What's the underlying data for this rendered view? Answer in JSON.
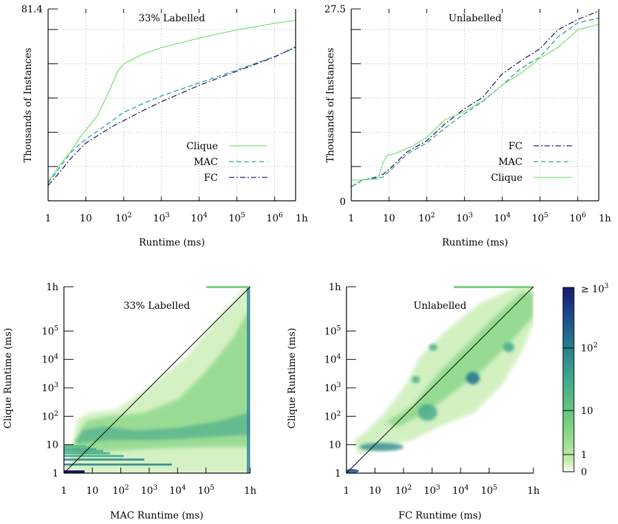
{
  "chart_data": [
    {
      "type": "line",
      "title": "33% Labelled",
      "xlabel": "Runtime (ms)",
      "ylabel": "Thousands of Instances",
      "x_scale": "log",
      "xlim": [
        1,
        3600000
      ],
      "ylim": [
        0,
        81.4
      ],
      "x_tick_labels": [
        "1",
        "10",
        "10^2",
        "10^3",
        "10^4",
        "10^5",
        "10^6",
        "1h"
      ],
      "y_tick_labels": [
        "81.4"
      ],
      "grid": true,
      "legend": "bottom-right",
      "series": [
        {
          "name": "Clique",
          "color": "#7ee07a",
          "dash": "solid",
          "x": [
            1,
            2,
            4,
            7,
            10,
            20,
            40,
            70,
            100,
            300,
            1000,
            10000,
            100000,
            1000000,
            3600000
          ],
          "y": [
            8,
            15,
            21,
            27,
            30,
            36,
            46,
            55,
            58,
            62,
            65,
            69,
            72.5,
            75.3,
            76.5
          ]
        },
        {
          "name": "MAC",
          "color": "#2a9d8f",
          "dash": "dashed",
          "x": [
            1,
            2,
            4,
            7,
            10,
            20,
            50,
            100,
            300,
            1000,
            10000,
            100000,
            1000000,
            3600000
          ],
          "y": [
            7.5,
            14,
            20.5,
            24,
            26.2,
            29.5,
            34,
            37.5,
            41,
            44.5,
            50,
            55.5,
            61.2,
            65
          ]
        },
        {
          "name": "FC",
          "color": "#1c1c6e",
          "dash": "dashdot",
          "x": [
            1,
            2,
            4,
            7,
            10,
            20,
            50,
            100,
            300,
            1000,
            10000,
            100000,
            1000000,
            3600000
          ],
          "y": [
            6.5,
            12,
            18,
            22,
            24.5,
            27.5,
            31.5,
            34,
            38,
            42,
            49,
            55,
            61,
            65.3
          ]
        }
      ]
    },
    {
      "type": "line",
      "title": "Unlabelled",
      "xlabel": "Runtime (ms)",
      "ylabel": "Thousands of Instances",
      "x_scale": "log",
      "xlim": [
        1,
        3600000
      ],
      "ylim": [
        0,
        27.5
      ],
      "x_tick_labels": [
        "1",
        "10",
        "10^2",
        "10^3",
        "10^4",
        "10^5",
        "10^6",
        "1h"
      ],
      "y_tick_labels": [
        "0",
        "27.5"
      ],
      "grid": true,
      "legend": "bottom-right",
      "series": [
        {
          "name": "FC",
          "color": "#1c1c6e",
          "dash": "dashdot",
          "x": [
            1,
            2,
            4,
            7,
            10,
            30,
            100,
            300,
            1000,
            3000,
            10000,
            30000,
            100000,
            300000,
            1000000,
            3600000
          ],
          "y": [
            2,
            3,
            3.3,
            3.8,
            4.5,
            7,
            8.6,
            11,
            13.2,
            14.8,
            18.2,
            20,
            21.8,
            24.5,
            26,
            27.2
          ]
        },
        {
          "name": "MAC",
          "color": "#2a9d8f",
          "dash": "dashed",
          "x": [
            1,
            2,
            4,
            7,
            10,
            30,
            100,
            300,
            1000,
            3000,
            10000,
            30000,
            100000,
            300000,
            1000000,
            3600000
          ],
          "y": [
            2,
            3,
            3.2,
            3.4,
            4.2,
            6.7,
            8.3,
            10.4,
            12.5,
            14.2,
            16.6,
            18.9,
            20.6,
            23.5,
            25.5,
            26.2
          ]
        },
        {
          "name": "Clique",
          "color": "#7ee07a",
          "dash": "solid",
          "x": [
            1,
            2,
            5,
            7,
            9,
            15,
            40,
            100,
            300,
            1000,
            3000,
            10000,
            30000,
            100000,
            300000,
            1000000,
            3600000
          ],
          "y": [
            3,
            3,
            3.1,
            5.5,
            6.5,
            6.8,
            7.8,
            9.1,
            11.6,
            12.8,
            14.3,
            16.6,
            18.2,
            20.4,
            22,
            24.5,
            25.3
          ]
        }
      ]
    },
    {
      "type": "heatmap",
      "title": "33% Labelled",
      "xlabel": "MAC Runtime (ms)",
      "ylabel": "Clique Runtime (ms)",
      "x_scale": "log",
      "y_scale": "log",
      "xlim": [
        1,
        3600000
      ],
      "ylim": [
        1,
        3600000
      ],
      "x_tick_labels": [
        "1",
        "10",
        "10^2",
        "10^3",
        "10^4",
        "10^5",
        "1h"
      ],
      "y_tick_labels": [
        "1",
        "10",
        "10^2",
        "10^3",
        "10^4",
        "10^5",
        "1h"
      ],
      "diagonal": "y = x",
      "colorbar": {
        "label_levels": [
          "0",
          "1",
          "10",
          "10^2",
          "≥ 10^3"
        ]
      }
    },
    {
      "type": "heatmap",
      "title": "Unlabelled",
      "xlabel": "FC Runtime (ms)",
      "ylabel": "Clique Runtime (ms)",
      "x_scale": "log",
      "y_scale": "log",
      "xlim": [
        1,
        3600000
      ],
      "ylim": [
        1,
        3600000
      ],
      "x_tick_labels": [
        "1",
        "10",
        "10^2",
        "10^3",
        "10^4",
        "10^5",
        "1h"
      ],
      "y_tick_labels": [
        "1",
        "10",
        "10^2",
        "10^3",
        "10^4",
        "10^5",
        "1h"
      ],
      "diagonal": "y = x",
      "colorbar": {
        "label_levels": [
          "0",
          "1",
          "10",
          "10^2",
          "≥ 10^3"
        ]
      }
    }
  ],
  "colors": {
    "clique": "#7ee07a",
    "mac": "#2a9d8f",
    "fc": "#1c1c6e",
    "grid": "#b0b0b0",
    "colormap": [
      "#f7fcf0",
      "#c6ecb0",
      "#7bd17c",
      "#3fa98a",
      "#22718f",
      "#1b3f86",
      "#171b6b"
    ]
  }
}
